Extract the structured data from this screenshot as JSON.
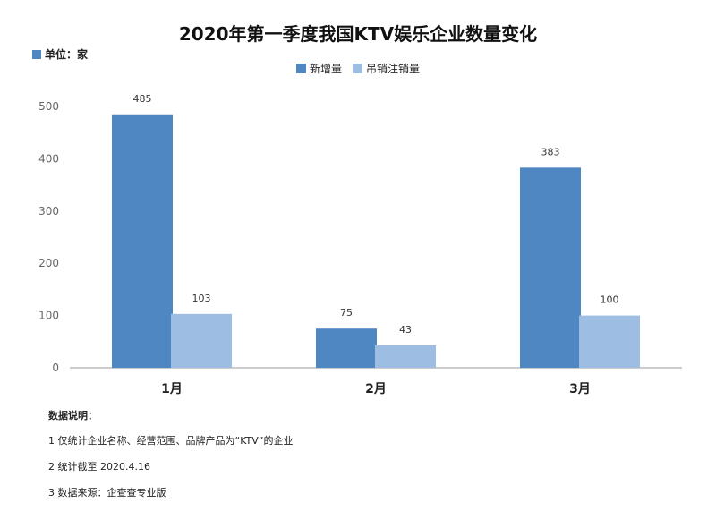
{
  "title": "2020年第一季度我国KTV娱乐企业数量变化",
  "unit_label": "单位：家",
  "notes": {
    "heading": "数据说明：",
    "lines": [
      "1 仅统计企业名称、经营范围、品牌产品为“KTV”的企业",
      "2 统计截至 2020.4.16",
      "3 数据来源：企查查专业版"
    ]
  },
  "colors": {
    "new": "#4f87c3",
    "cancel": "#9dbde3",
    "axis": "#9a9a9a",
    "grid": "#e6e6e6"
  },
  "chart_data": {
    "type": "bar",
    "title": "2020年第一季度我国KTV娱乐企业数量变化",
    "categories": [
      "1月",
      "2月",
      "3月"
    ],
    "series": [
      {
        "name": "新增量",
        "values": [
          485,
          75,
          383
        ]
      },
      {
        "name": "吊销注销量",
        "values": [
          103,
          43,
          100
        ]
      }
    ],
    "yticks": [
      0,
      100,
      200,
      300,
      400,
      500
    ],
    "ylim": [
      0,
      500
    ],
    "grid": false,
    "legend_position": "top-center"
  }
}
